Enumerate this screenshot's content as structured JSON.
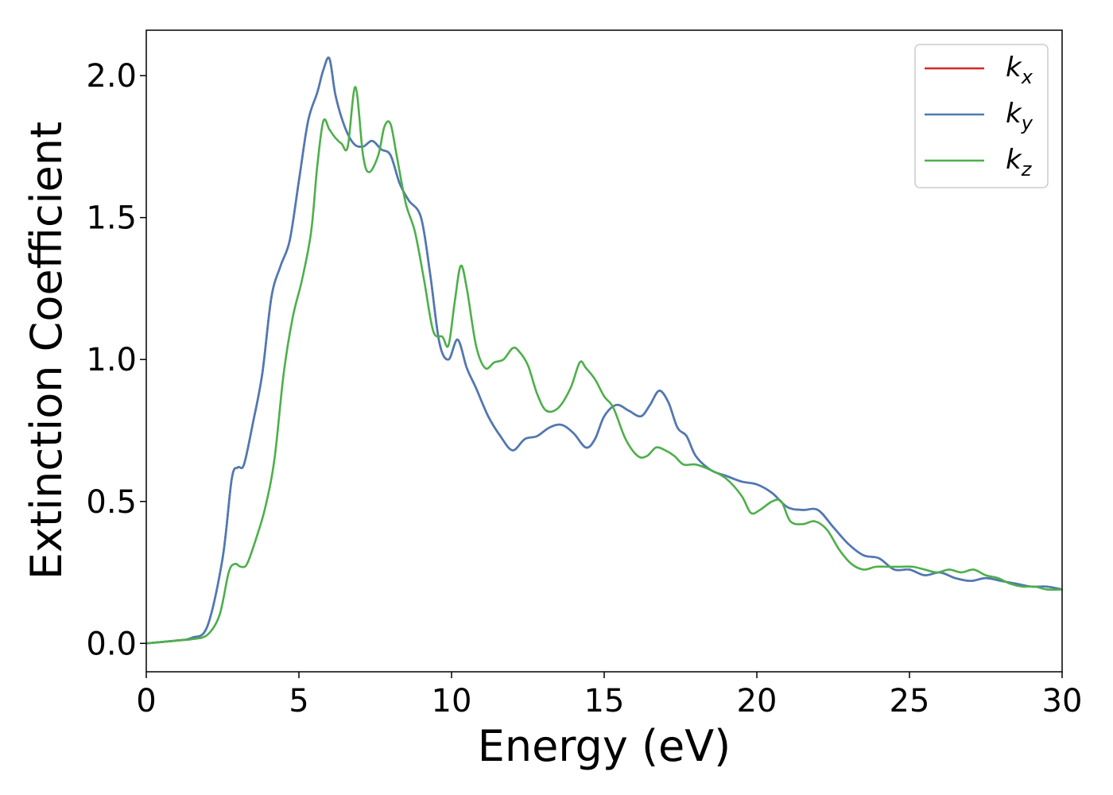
{
  "chart_data": {
    "type": "line",
    "title": "",
    "xlabel": "Energy (eV)",
    "ylabel": "Extinction Coefficient",
    "xlim": [
      0,
      30
    ],
    "ylim": [
      -0.1,
      2.16
    ],
    "xticks": [
      0,
      5,
      10,
      15,
      20,
      25,
      30
    ],
    "xtick_labels": [
      "0",
      "5",
      "10",
      "15",
      "20",
      "25",
      "30"
    ],
    "yticks": [
      0.0,
      0.5,
      1.0,
      1.5,
      2.0
    ],
    "ytick_labels": [
      "0.0",
      "0.5",
      "1.0",
      "1.5",
      "2.0"
    ],
    "grid": false,
    "legend_position": "top-right",
    "series": [
      {
        "name": "k",
        "subscript": "x",
        "color": "#d62728",
        "x": [
          0,
          1,
          1.5,
          2,
          2.5,
          2.8,
          3,
          3.2,
          3.5,
          3.8,
          4.1,
          4.4,
          4.7,
          5,
          5.3,
          5.6,
          5.8,
          6,
          6.2,
          6.5,
          6.8,
          7.1,
          7.4,
          7.7,
          8,
          8.3,
          8.6,
          9,
          9.3,
          9.6,
          9.9,
          10.2,
          10.5,
          10.8,
          11.2,
          11.6,
          12,
          12.4,
          12.8,
          13.2,
          13.6,
          14,
          14.4,
          14.7,
          15,
          15.4,
          15.8,
          16.2,
          16.5,
          16.8,
          17.1,
          17.4,
          17.7,
          18,
          18.5,
          19,
          19.5,
          20,
          20.5,
          21,
          21.5,
          22,
          22.5,
          23,
          23.5,
          24,
          24.5,
          25,
          25.5,
          26,
          26.5,
          27,
          27.5,
          28,
          28.5,
          29,
          29.5,
          30
        ],
        "y": [
          0.0,
          0.01,
          0.02,
          0.06,
          0.3,
          0.58,
          0.62,
          0.63,
          0.78,
          0.95,
          1.22,
          1.33,
          1.42,
          1.63,
          1.84,
          1.94,
          2.02,
          2.06,
          1.93,
          1.82,
          1.76,
          1.75,
          1.77,
          1.74,
          1.72,
          1.62,
          1.56,
          1.5,
          1.3,
          1.06,
          1.0,
          1.07,
          0.97,
          0.9,
          0.8,
          0.73,
          0.68,
          0.72,
          0.73,
          0.76,
          0.77,
          0.74,
          0.69,
          0.72,
          0.8,
          0.84,
          0.82,
          0.8,
          0.84,
          0.89,
          0.85,
          0.76,
          0.73,
          0.66,
          0.61,
          0.59,
          0.57,
          0.56,
          0.53,
          0.48,
          0.47,
          0.47,
          0.41,
          0.35,
          0.31,
          0.3,
          0.26,
          0.26,
          0.24,
          0.25,
          0.23,
          0.22,
          0.23,
          0.22,
          0.21,
          0.2,
          0.2,
          0.19
        ]
      },
      {
        "name": "k",
        "subscript": "y",
        "color": "#4a7bb7",
        "x": [
          0,
          1,
          1.5,
          2,
          2.5,
          2.8,
          3,
          3.2,
          3.5,
          3.8,
          4.1,
          4.4,
          4.7,
          5,
          5.3,
          5.6,
          5.8,
          6,
          6.2,
          6.5,
          6.8,
          7.1,
          7.4,
          7.7,
          8,
          8.3,
          8.6,
          9,
          9.3,
          9.6,
          9.9,
          10.2,
          10.5,
          10.8,
          11.2,
          11.6,
          12,
          12.4,
          12.8,
          13.2,
          13.6,
          14,
          14.4,
          14.7,
          15,
          15.4,
          15.8,
          16.2,
          16.5,
          16.8,
          17.1,
          17.4,
          17.7,
          18,
          18.5,
          19,
          19.5,
          20,
          20.5,
          21,
          21.5,
          22,
          22.5,
          23,
          23.5,
          24,
          24.5,
          25,
          25.5,
          26,
          26.5,
          27,
          27.5,
          28,
          28.5,
          29,
          29.5,
          30
        ],
        "y": [
          0.0,
          0.01,
          0.02,
          0.06,
          0.3,
          0.58,
          0.62,
          0.63,
          0.78,
          0.95,
          1.22,
          1.33,
          1.42,
          1.63,
          1.84,
          1.94,
          2.02,
          2.06,
          1.93,
          1.82,
          1.76,
          1.75,
          1.77,
          1.74,
          1.72,
          1.62,
          1.56,
          1.5,
          1.3,
          1.06,
          1.0,
          1.07,
          0.97,
          0.9,
          0.8,
          0.73,
          0.68,
          0.72,
          0.73,
          0.76,
          0.77,
          0.74,
          0.69,
          0.72,
          0.8,
          0.84,
          0.82,
          0.8,
          0.84,
          0.89,
          0.85,
          0.76,
          0.73,
          0.66,
          0.61,
          0.59,
          0.57,
          0.56,
          0.53,
          0.48,
          0.47,
          0.47,
          0.41,
          0.35,
          0.31,
          0.3,
          0.26,
          0.26,
          0.24,
          0.25,
          0.23,
          0.22,
          0.23,
          0.22,
          0.21,
          0.2,
          0.2,
          0.19
        ]
      },
      {
        "name": "k",
        "subscript": "z",
        "color": "#4daf4a",
        "x": [
          0,
          1,
          1.5,
          2,
          2.4,
          2.7,
          2.9,
          3.1,
          3.3,
          3.6,
          3.9,
          4.2,
          4.5,
          4.8,
          5.1,
          5.4,
          5.6,
          5.8,
          6,
          6.2,
          6.4,
          6.6,
          6.85,
          7.1,
          7.3,
          7.6,
          7.8,
          8,
          8.2,
          8.5,
          8.8,
          9.1,
          9.4,
          9.7,
          9.9,
          10.1,
          10.3,
          10.5,
          10.8,
          11.1,
          11.4,
          11.7,
          12,
          12.2,
          12.5,
          12.8,
          13.1,
          13.5,
          13.9,
          14.2,
          14.4,
          14.7,
          15,
          15.3,
          15.7,
          16.1,
          16.4,
          16.7,
          17,
          17.3,
          17.6,
          18,
          18.5,
          19,
          19.5,
          19.8,
          20.1,
          20.5,
          20.8,
          21.1,
          21.5,
          21.9,
          22.3,
          22.7,
          23.1,
          23.5,
          23.9,
          24.3,
          24.7,
          25.1,
          25.5,
          25.9,
          26.3,
          26.7,
          27.1,
          27.5,
          27.9,
          28.3,
          28.7,
          29.1,
          29.5,
          30
        ],
        "y": [
          0.0,
          0.01,
          0.015,
          0.03,
          0.1,
          0.25,
          0.28,
          0.27,
          0.28,
          0.37,
          0.48,
          0.65,
          0.95,
          1.15,
          1.28,
          1.45,
          1.68,
          1.84,
          1.81,
          1.78,
          1.76,
          1.75,
          1.96,
          1.72,
          1.66,
          1.72,
          1.82,
          1.83,
          1.72,
          1.55,
          1.45,
          1.28,
          1.1,
          1.08,
          1.05,
          1.2,
          1.33,
          1.25,
          1.05,
          0.97,
          0.99,
          1.0,
          1.04,
          1.03,
          0.98,
          0.88,
          0.82,
          0.83,
          0.9,
          0.99,
          0.97,
          0.93,
          0.87,
          0.83,
          0.72,
          0.66,
          0.66,
          0.69,
          0.68,
          0.66,
          0.63,
          0.63,
          0.61,
          0.58,
          0.52,
          0.46,
          0.47,
          0.5,
          0.5,
          0.43,
          0.42,
          0.43,
          0.4,
          0.33,
          0.28,
          0.26,
          0.27,
          0.27,
          0.27,
          0.27,
          0.26,
          0.25,
          0.26,
          0.25,
          0.26,
          0.24,
          0.23,
          0.21,
          0.2,
          0.2,
          0.19,
          0.19
        ]
      }
    ]
  }
}
